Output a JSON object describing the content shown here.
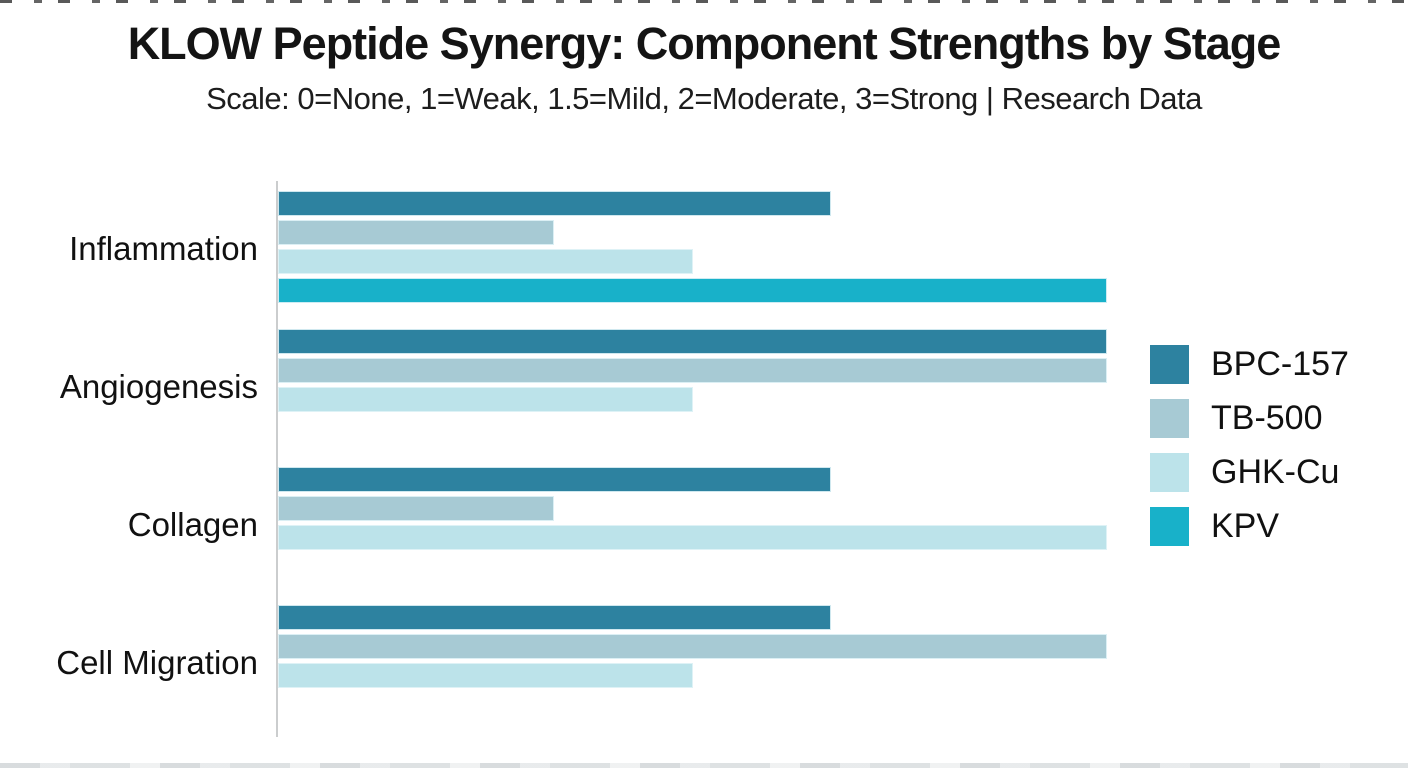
{
  "header": {
    "title": "KLOW Peptide Synergy: Component Strengths by Stage",
    "subtitle": "Scale: 0=None, 1=Weak, 1.5=Mild, 2=Moderate, 3=Strong | Research Data"
  },
  "colors": {
    "bpc157": "#2d82a0",
    "tb500": "#a7cad4",
    "ghkcu": "#bce3ea",
    "kpv": "#18b1c9",
    "axis_line": "#cbcdce",
    "text": "#141414",
    "background": "#ffffff"
  },
  "chart_data": {
    "type": "bar",
    "orientation": "horizontal",
    "title": "KLOW Peptide Synergy: Component Strengths by Stage",
    "subtitle": "Scale: 0=None, 1=Weak, 1.5=Mild, 2=Moderate, 3=Strong | Research Data",
    "categories": [
      "Inflammation",
      "Angiogenesis",
      "Collagen",
      "Cell Migration"
    ],
    "series": [
      {
        "name": "BPC-157",
        "color": "#2d82a0",
        "values": [
          2,
          3,
          2,
          2
        ]
      },
      {
        "name": "TB-500",
        "color": "#a7cad4",
        "values": [
          1,
          3,
          1,
          3
        ]
      },
      {
        "name": "GHK-Cu",
        "color": "#bce3ea",
        "values": [
          1.5,
          1.5,
          3,
          1.5
        ]
      },
      {
        "name": "KPV",
        "color": "#18b1c9",
        "values": [
          3,
          0,
          0,
          0
        ]
      }
    ],
    "value_scale_labels": {
      "0": "None",
      "1": "Weak",
      "1.5": "Mild",
      "2": "Moderate",
      "3": "Strong"
    },
    "xlim": [
      0,
      3
    ],
    "grid": false,
    "legend_position": "right",
    "zero_rendered_as": "no bar (blank slot)"
  },
  "legend": {
    "items": [
      {
        "label": "BPC-157",
        "color": "#2d82a0"
      },
      {
        "label": "TB-500",
        "color": "#a7cad4"
      },
      {
        "label": "GHK-Cu",
        "color": "#bce3ea"
      },
      {
        "label": "KPV",
        "color": "#18b1c9"
      }
    ]
  }
}
